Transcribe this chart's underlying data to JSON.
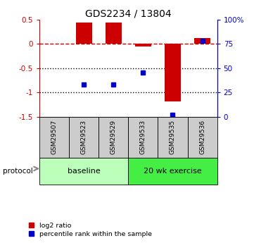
{
  "title": "GDS2234 / 13804",
  "samples": [
    "GSM29507",
    "GSM29523",
    "GSM29529",
    "GSM29533",
    "GSM29535",
    "GSM29536"
  ],
  "log2_ratio": [
    0.0,
    0.43,
    0.43,
    -0.05,
    -1.18,
    0.12
  ],
  "percentile_rank": [
    null,
    33,
    33,
    45,
    2,
    78
  ],
  "groups": [
    {
      "label": "baseline",
      "start": 0,
      "end": 3,
      "color": "#bbffbb"
    },
    {
      "label": "20 wk exercise",
      "start": 3,
      "end": 6,
      "color": "#44ee44"
    }
  ],
  "ylim": [
    -1.5,
    0.5
  ],
  "yticks_left": [
    -1.5,
    -1.0,
    -0.5,
    0.0,
    0.5
  ],
  "yticks_right_vals": [
    0,
    25,
    50,
    75,
    100
  ],
  "hlines_dotted": [
    -0.5,
    -1.0
  ],
  "hline_dashed": 0.0,
  "bar_color_red": "#cc0000",
  "bar_color_blue": "#0000cc",
  "bar_width": 0.55,
  "legend_red_label": "log2 ratio",
  "legend_blue_label": "percentile rank within the sample",
  "protocol_label": "protocol",
  "sample_box_color": "#cccccc"
}
